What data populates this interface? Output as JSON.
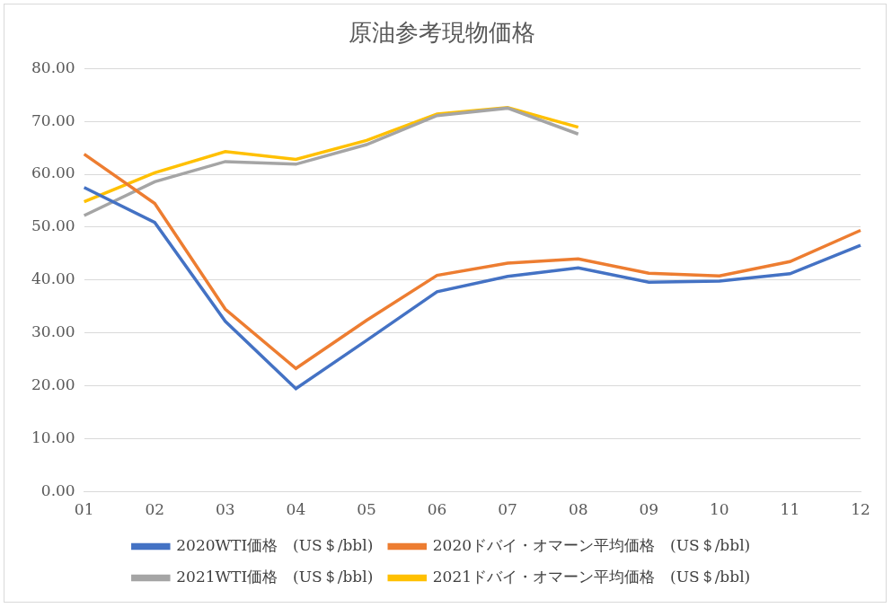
{
  "chart_data": {
    "type": "line",
    "title": "原油参考現物価格",
    "categories": [
      "01",
      "02",
      "03",
      "04",
      "05",
      "06",
      "07",
      "08",
      "09",
      "10",
      "11",
      "12"
    ],
    "series": [
      {
        "name": "2020WTI価格　(US＄/bbl)",
        "color": "#4472c4",
        "values": [
          57.5,
          50.9,
          32.2,
          19.5,
          28.6,
          37.8,
          40.7,
          42.3,
          39.6,
          39.8,
          41.2,
          46.6
        ]
      },
      {
        "name": "2020ドバイ・オマーン平均価格　(US＄/bbl)",
        "color": "#ed7d31",
        "values": [
          63.8,
          54.5,
          34.5,
          23.3,
          32.4,
          40.9,
          43.2,
          44.0,
          41.3,
          40.8,
          43.5,
          49.4
        ]
      },
      {
        "name": "2021WTI価格　(US＄/bbl)",
        "color": "#a5a5a5",
        "values": [
          52.2,
          58.6,
          62.4,
          61.9,
          65.6,
          71.1,
          72.5,
          67.6,
          null,
          null,
          null,
          null
        ]
      },
      {
        "name": "2021ドバイ・オマーン平均価格　(US＄/bbl)",
        "color": "#ffc000",
        "values": [
          54.8,
          60.3,
          64.3,
          62.8,
          66.4,
          71.4,
          72.6,
          68.9,
          null,
          null,
          null,
          null
        ]
      }
    ],
    "ylim": [
      0,
      80
    ],
    "yticks": [
      {
        "value": 0,
        "label": "0.00"
      },
      {
        "value": 10,
        "label": "10.00"
      },
      {
        "value": 20,
        "label": "20.00"
      },
      {
        "value": 30,
        "label": "30.00"
      },
      {
        "value": 40,
        "label": "40.00"
      },
      {
        "value": 50,
        "label": "50.00"
      },
      {
        "value": 60,
        "label": "60.00"
      },
      {
        "value": 70,
        "label": "70.00"
      },
      {
        "value": 80,
        "label": "80.00"
      }
    ],
    "grid": true,
    "legend": "bottom"
  }
}
